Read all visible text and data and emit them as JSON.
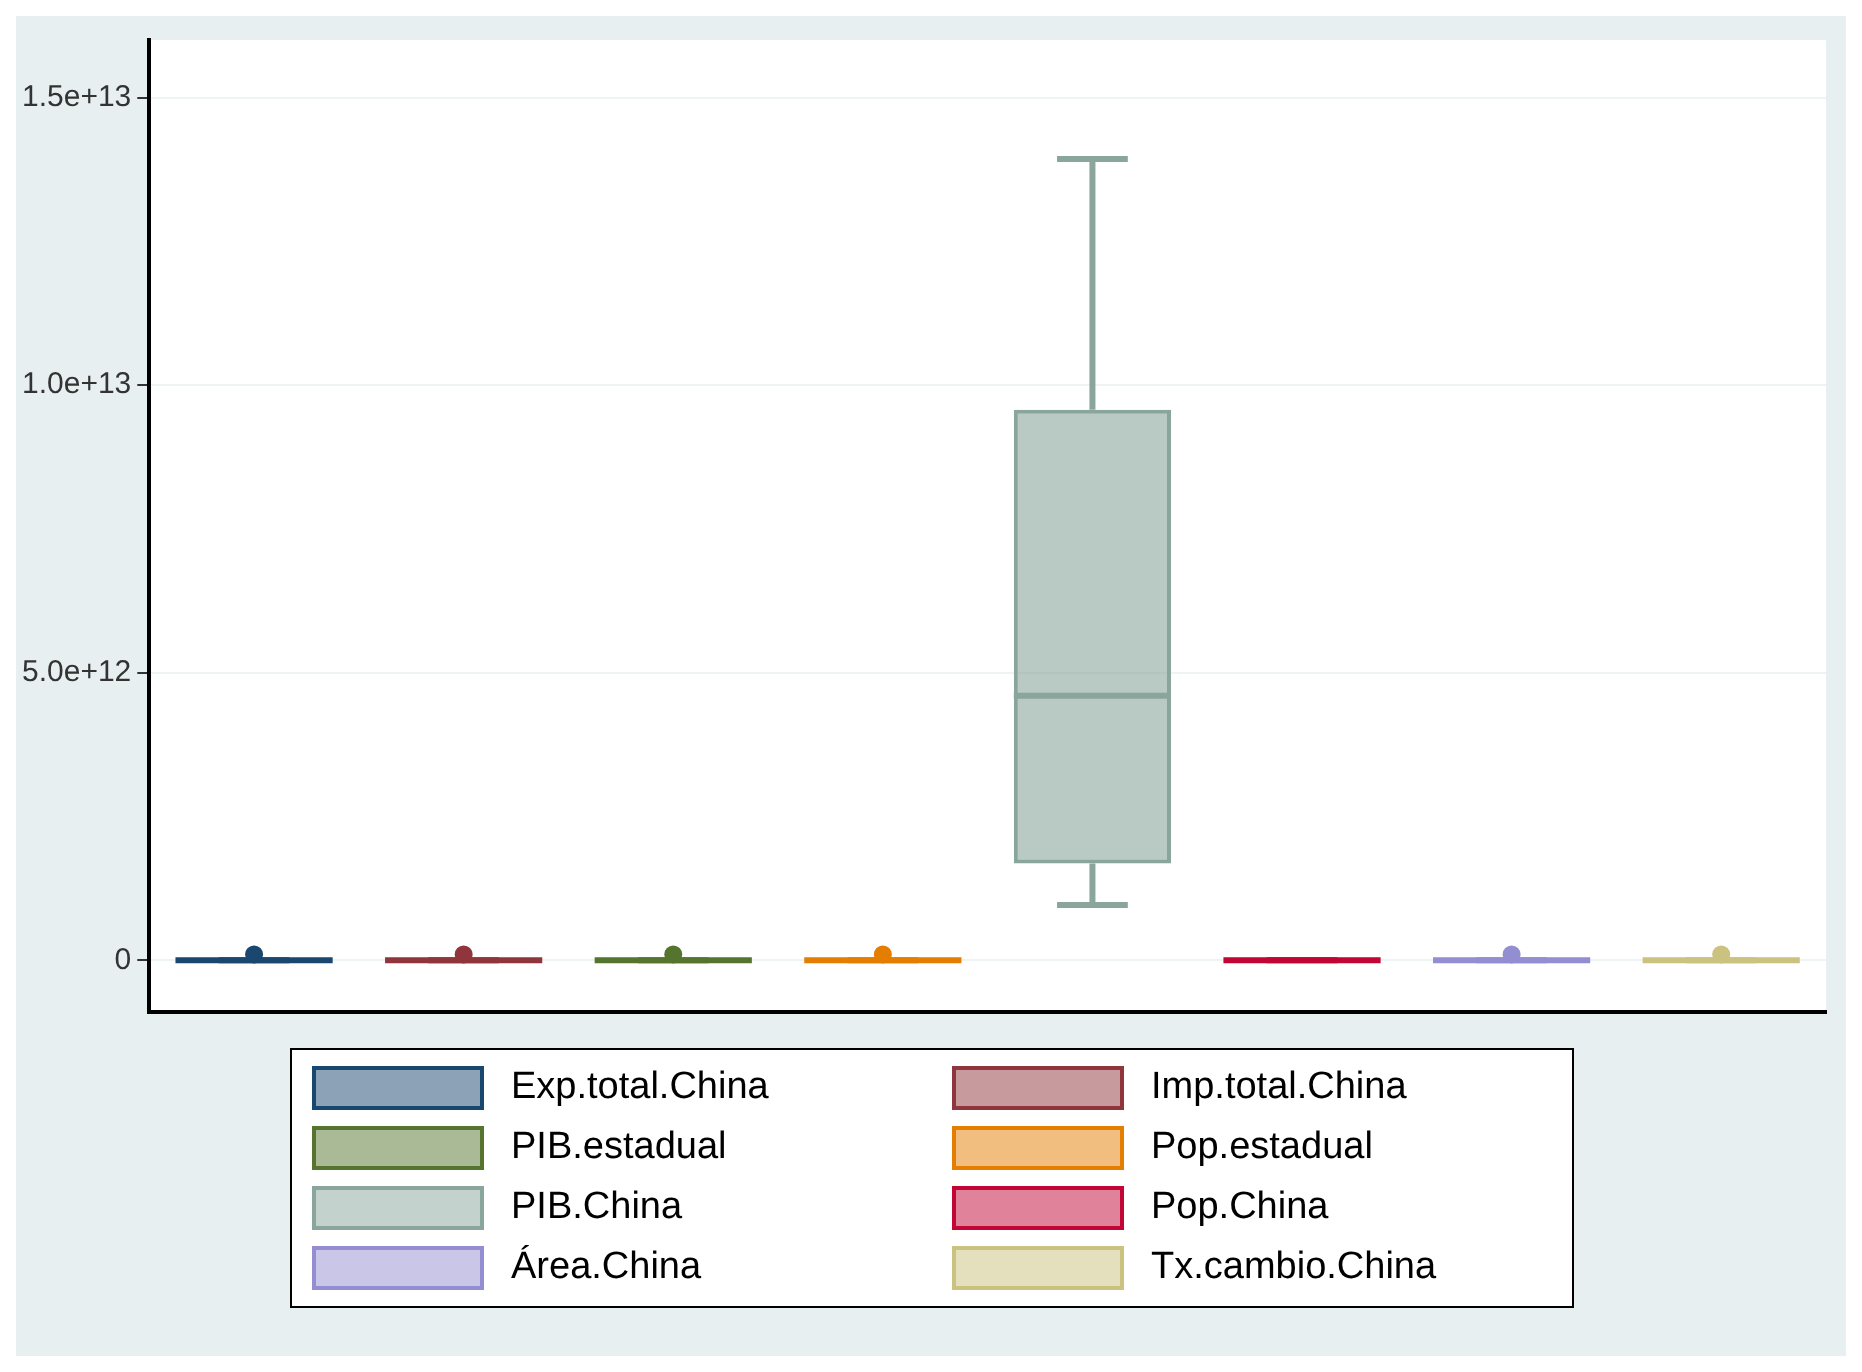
{
  "chart_data": {
    "type": "box",
    "categories": [
      null,
      null,
      null,
      null,
      null,
      null,
      null,
      null
    ],
    "series": [
      {
        "name": "Exp.total.China",
        "color": "#1a476f",
        "boxes": [
          {
            "low": 0,
            "q1": 0,
            "median": 0,
            "q3": 0,
            "high": 0,
            "outliers": [
              100000000000.0
            ]
          },
          null,
          null,
          null,
          null,
          null,
          null,
          null
        ]
      },
      {
        "name": "Imp.total.China",
        "color": "#90353b",
        "boxes": [
          null,
          {
            "low": 0,
            "q1": 0,
            "median": 0,
            "q3": 0,
            "high": 0,
            "outliers": [
              100000000000.0
            ]
          },
          null,
          null,
          null,
          null,
          null,
          null
        ]
      },
      {
        "name": "PIB.estadual",
        "color": "#55752f",
        "boxes": [
          null,
          null,
          {
            "low": 0,
            "q1": 0,
            "median": 0,
            "q3": 0,
            "high": 0,
            "outliers": [
              100000000000.0
            ]
          },
          null,
          null,
          null,
          null,
          null
        ]
      },
      {
        "name": "Pop.estadual",
        "color": "#e37e00",
        "boxes": [
          null,
          null,
          null,
          {
            "low": 0,
            "q1": 0,
            "median": 0,
            "q3": 0,
            "high": 0,
            "outliers": [
              100000000000.0
            ]
          },
          null,
          null,
          null,
          null
        ]
      },
      {
        "name": "PIB.China",
        "color": "#8aa59c",
        "boxes": [
          null,
          null,
          null,
          null,
          {
            "low": 960000000000.0,
            "q1": 1680000000000.0,
            "median": 4600000000000.0,
            "q3": 9570000000000.0,
            "high": 13930000000000.0
          },
          null,
          null,
          null
        ]
      },
      {
        "name": "Pop.China",
        "color": "#c10534",
        "boxes": [
          null,
          null,
          null,
          null,
          null,
          {
            "low": 0,
            "q1": 0,
            "median": 0,
            "q3": 0,
            "high": 0
          },
          null,
          null
        ]
      },
      {
        "name": "Área.China",
        "color": "#938dd2",
        "boxes": [
          null,
          null,
          null,
          null,
          null,
          null,
          {
            "low": 0,
            "q1": 0,
            "median": 0,
            "q3": 0,
            "high": 0,
            "outliers": [
              100000000000.0
            ]
          },
          null
        ]
      },
      {
        "name": "Tx.cambio.China",
        "color": "#cac27e",
        "boxes": [
          null,
          null,
          null,
          null,
          null,
          null,
          null,
          {
            "low": 0,
            "q1": 0,
            "median": 0,
            "q3": 0,
            "high": 0,
            "outliers": [
              100000000000.0
            ]
          }
        ]
      }
    ],
    "ylim": [
      -900000000000.0,
      16000000000000.0
    ],
    "yticks": [
      {
        "value": 0,
        "label": "0"
      },
      {
        "value": 5000000000000.0,
        "label": "5.0e+12"
      },
      {
        "value": 10000000000000.0,
        "label": "1.0e+13"
      },
      {
        "value": 15000000000000.0,
        "label": "1.5e+13"
      }
    ],
    "grid": "y",
    "legend": "bottom"
  }
}
